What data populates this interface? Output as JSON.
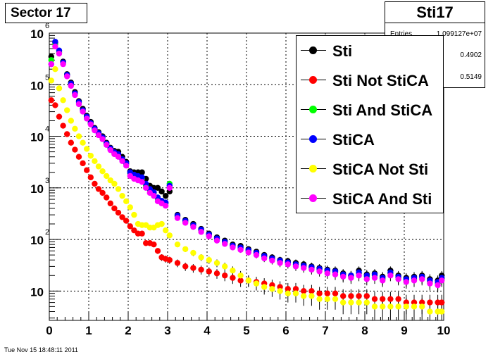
{
  "sector_label": "Sector 17",
  "stats": {
    "title": "Sti17",
    "rows": [
      {
        "key": "Entries",
        "value": "1.099127e+07"
      },
      {
        "key": "",
        "value": "0.4902"
      },
      {
        "key": "",
        "value": "0.5149"
      }
    ]
  },
  "timestamp": "Tue Nov 15 18:48:11 2011",
  "chart_data": {
    "type": "scatter",
    "x_ticks": [
      "0",
      "1",
      "2",
      "3",
      "4",
      "5",
      "6",
      "7",
      "8",
      "9",
      "10"
    ],
    "xlim": [
      0,
      10
    ],
    "ylim": [
      2.7,
      1000000
    ],
    "yscale": "log",
    "y_tick_labels": [
      {
        "value": 10,
        "base": "10",
        "exp": ""
      },
      {
        "value": 100,
        "base": "10",
        "exp": "2"
      },
      {
        "value": 1000,
        "base": "10",
        "exp": "3"
      },
      {
        "value": 10000,
        "base": "10",
        "exp": "4"
      },
      {
        "value": 100000,
        "base": "10",
        "exp": "5"
      },
      {
        "value": 1000000,
        "base": "10",
        "exp": "6"
      }
    ],
    "grid": true,
    "legend_position": "top-right",
    "series": [
      {
        "name": "Sti",
        "color": "#000000",
        "x": [
          0.05,
          0.15,
          0.25,
          0.35,
          0.45,
          0.55,
          0.65,
          0.75,
          0.85,
          0.95,
          1.05,
          1.15,
          1.25,
          1.35,
          1.45,
          1.55,
          1.65,
          1.75,
          1.85,
          1.95,
          2.05,
          2.15,
          2.25,
          2.35,
          2.45,
          2.55,
          2.65,
          2.75,
          2.85,
          2.95,
          3.05,
          3.25,
          3.45,
          3.65,
          3.85,
          4.05,
          4.25,
          4.45,
          4.65,
          4.85,
          5.05,
          5.25,
          5.45,
          5.65,
          5.85,
          6.05,
          6.25,
          6.45,
          6.65,
          6.85,
          7.05,
          7.25,
          7.45,
          7.65,
          7.85,
          8.05,
          8.25,
          8.45,
          8.65,
          8.85,
          9.05,
          9.25,
          9.45,
          9.65,
          9.85,
          9.95
        ],
        "y": [
          350000,
          650000,
          450000,
          280000,
          160000,
          110000,
          72000,
          48000,
          34000,
          25000,
          19000,
          14500,
          12000,
          10000,
          7500,
          6000,
          5200,
          5000,
          4000,
          3200,
          2100,
          2000,
          2000,
          2000,
          1500,
          1100,
          1000,
          1000,
          850,
          700,
          850,
          300,
          240,
          200,
          160,
          130,
          110,
          95,
          80,
          75,
          65,
          58,
          50,
          45,
          40,
          38,
          35,
          33,
          30,
          28,
          26,
          25,
          22,
          20,
          25,
          21,
          22,
          19,
          25,
          20,
          18,
          19,
          20,
          17,
          16,
          20
        ]
      },
      {
        "name": "Sti Not StiCA",
        "color": "#ff0000",
        "x": [
          0.05,
          0.15,
          0.25,
          0.35,
          0.45,
          0.55,
          0.65,
          0.75,
          0.85,
          0.95,
          1.05,
          1.15,
          1.25,
          1.35,
          1.45,
          1.55,
          1.65,
          1.75,
          1.85,
          1.95,
          2.05,
          2.15,
          2.25,
          2.35,
          2.45,
          2.55,
          2.65,
          2.75,
          2.85,
          2.95,
          3.05,
          3.25,
          3.45,
          3.65,
          3.85,
          4.05,
          4.25,
          4.45,
          4.65,
          4.85,
          5.05,
          5.25,
          5.45,
          5.65,
          5.85,
          6.05,
          6.25,
          6.45,
          6.65,
          6.85,
          7.05,
          7.25,
          7.45,
          7.65,
          7.85,
          8.05,
          8.25,
          8.45,
          8.65,
          8.85,
          9.05,
          9.25,
          9.45,
          9.65,
          9.85,
          9.95
        ],
        "y": [
          50000,
          40000,
          24000,
          16000,
          11000,
          7500,
          5500,
          4000,
          3000,
          2200,
          1600,
          1200,
          950,
          800,
          650,
          500,
          400,
          330,
          270,
          230,
          180,
          150,
          130,
          130,
          85,
          85,
          80,
          60,
          45,
          42,
          40,
          35,
          30,
          28,
          26,
          24,
          22,
          20,
          18,
          16,
          16,
          15,
          14,
          13,
          12,
          11,
          11,
          10,
          10,
          9,
          9,
          9,
          8,
          8,
          8,
          8,
          7,
          7,
          7,
          7,
          6,
          6,
          6,
          6,
          6,
          6
        ]
      },
      {
        "name": "Sti And StiCA",
        "color": "#00ff00",
        "x": [
          0.05,
          0.15,
          0.25,
          0.35,
          0.45,
          0.55,
          0.65,
          0.75,
          0.85,
          0.95,
          1.05,
          1.15,
          1.25,
          1.35,
          1.45,
          1.55,
          1.65,
          1.75,
          1.85,
          1.95,
          2.05,
          2.15,
          2.25,
          2.35,
          2.45,
          2.55,
          2.65,
          2.75,
          2.85,
          2.95,
          3.05,
          3.25,
          3.45,
          3.65,
          3.85,
          4.05,
          4.25,
          4.45,
          4.65,
          4.85,
          5.05,
          5.25,
          5.45,
          5.65,
          5.85,
          6.05,
          6.25,
          6.45,
          6.65,
          6.85,
          7.05,
          7.25,
          7.45,
          7.65,
          7.85,
          8.05,
          8.25,
          8.45,
          8.65,
          8.85,
          9.05,
          9.25,
          9.45,
          9.65,
          9.85,
          9.95
        ],
        "y": [
          300000,
          600000,
          420000,
          260000,
          150000,
          100000,
          66000,
          44000,
          31000,
          23000,
          17500,
          13500,
          11000,
          9200,
          7000,
          5600,
          4700,
          4300,
          3500,
          2900,
          1900,
          1700,
          1600,
          1500,
          1100,
          900,
          800,
          600,
          550,
          500,
          1200,
          280,
          220,
          185,
          150,
          120,
          100,
          87,
          74,
          68,
          60,
          53,
          46,
          41,
          37,
          35,
          32,
          30,
          28,
          26,
          24,
          23,
          20,
          19,
          22,
          19,
          20,
          17,
          22,
          18,
          16,
          17,
          18,
          15,
          14,
          17
        ]
      },
      {
        "name": "StiCA",
        "color": "#0000ff",
        "x": [
          0.05,
          0.15,
          0.25,
          0.35,
          0.45,
          0.55,
          0.65,
          0.75,
          0.85,
          0.95,
          1.05,
          1.15,
          1.25,
          1.35,
          1.45,
          1.55,
          1.65,
          1.75,
          1.85,
          1.95,
          2.05,
          2.15,
          2.25,
          2.35,
          2.45,
          2.55,
          2.65,
          2.75,
          2.85,
          2.95,
          3.05,
          3.25,
          3.45,
          3.65,
          3.85,
          4.05,
          4.25,
          4.45,
          4.65,
          4.85,
          5.05,
          5.25,
          5.45,
          5.65,
          5.85,
          6.05,
          6.25,
          6.45,
          6.65,
          6.85,
          7.05,
          7.25,
          7.45,
          7.65,
          7.85,
          8.05,
          8.25,
          8.45,
          8.65,
          8.85,
          9.05,
          9.25,
          9.45,
          9.65,
          9.85,
          9.95
        ],
        "y": [
          250000,
          680000,
          460000,
          270000,
          155000,
          105000,
          68000,
          46000,
          32000,
          24000,
          18000,
          14000,
          11500,
          9500,
          7200,
          5800,
          4900,
          4500,
          3600,
          3000,
          2000,
          1800,
          1700,
          1600,
          1200,
          950,
          820,
          650,
          560,
          520,
          1100,
          290,
          230,
          190,
          155,
          125,
          105,
          90,
          76,
          70,
          62,
          55,
          48,
          43,
          39,
          36,
          33,
          31,
          29,
          27,
          25,
          24,
          21,
          20,
          23,
          20,
          21,
          18,
          23,
          19,
          17,
          18,
          19,
          16,
          15,
          18
        ]
      },
      {
        "name": "StiCA Not Sti",
        "color": "#ffff00",
        "x": [
          0.05,
          0.15,
          0.25,
          0.35,
          0.45,
          0.55,
          0.65,
          0.75,
          0.85,
          0.95,
          1.05,
          1.15,
          1.25,
          1.35,
          1.45,
          1.55,
          1.65,
          1.75,
          1.85,
          1.95,
          2.05,
          2.15,
          2.25,
          2.35,
          2.45,
          2.55,
          2.65,
          2.75,
          2.85,
          2.95,
          3.05,
          3.25,
          3.45,
          3.65,
          3.85,
          4.05,
          4.25,
          4.45,
          4.65,
          4.85,
          5.05,
          5.25,
          5.45,
          5.65,
          5.85,
          6.05,
          6.25,
          6.45,
          6.65,
          6.85,
          7.05,
          7.25,
          7.45,
          7.65,
          7.85,
          8.05,
          8.25,
          8.45,
          8.65,
          8.85,
          9.05,
          9.25,
          9.45,
          9.65,
          9.85,
          9.95
        ],
        "y": [
          120000,
          200000,
          85000,
          50000,
          32000,
          20000,
          14000,
          10000,
          7500,
          5700,
          4200,
          3300,
          2600,
          2100,
          1700,
          1400,
          1200,
          950,
          700,
          550,
          420,
          300,
          200,
          190,
          190,
          170,
          170,
          190,
          200,
          150,
          120,
          80,
          65,
          55,
          45,
          40,
          35,
          30,
          25,
          20,
          16,
          14,
          12,
          11,
          10,
          9,
          9,
          8,
          8,
          7,
          7,
          7,
          6,
          6,
          6,
          6,
          5,
          5,
          5,
          5,
          5,
          5,
          5,
          4,
          4,
          4
        ]
      },
      {
        "name": "StiCA And Sti",
        "color": "#ff00ff",
        "x": [
          0.05,
          0.15,
          0.25,
          0.35,
          0.45,
          0.55,
          0.65,
          0.75,
          0.85,
          0.95,
          1.05,
          1.15,
          1.25,
          1.35,
          1.45,
          1.55,
          1.65,
          1.75,
          1.85,
          1.95,
          2.05,
          2.15,
          2.25,
          2.35,
          2.45,
          2.55,
          2.65,
          2.75,
          2.85,
          2.95,
          3.05,
          3.25,
          3.45,
          3.65,
          3.85,
          4.05,
          4.25,
          4.45,
          4.65,
          4.85,
          5.05,
          5.25,
          5.45,
          5.65,
          5.85,
          6.05,
          6.25,
          6.45,
          6.65,
          6.85,
          7.05,
          7.25,
          7.45,
          7.65,
          7.85,
          8.05,
          8.25,
          8.45,
          8.65,
          8.85,
          9.05,
          9.25,
          9.45,
          9.65,
          9.85,
          9.95
        ],
        "y": [
          250000,
          550000,
          400000,
          250000,
          145000,
          95000,
          63000,
          42000,
          30000,
          22000,
          17000,
          13000,
          10500,
          8800,
          6800,
          5400,
          4500,
          4000,
          3300,
          2700,
          1700,
          1500,
          1400,
          1300,
          1000,
          800,
          700,
          550,
          500,
          450,
          1000,
          260,
          210,
          175,
          140,
          115,
          95,
          82,
          70,
          63,
          56,
          50,
          43,
          39,
          35,
          33,
          30,
          28,
          26,
          24,
          22,
          21,
          19,
          18,
          20,
          17,
          18,
          16,
          20,
          17,
          15,
          16,
          17,
          14,
          13,
          16
        ]
      }
    ]
  }
}
